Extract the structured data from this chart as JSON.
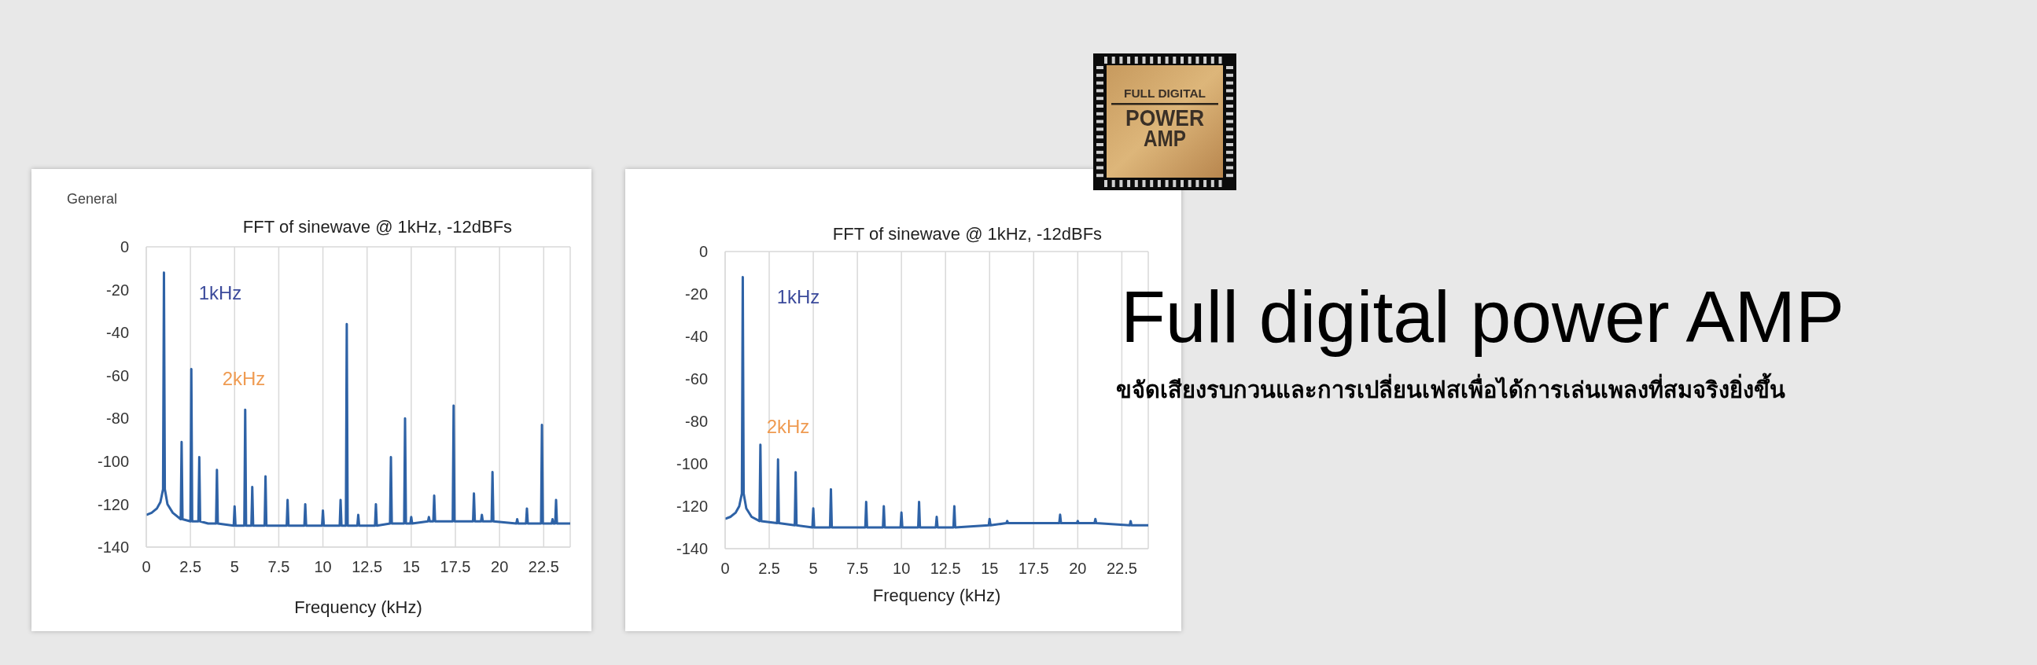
{
  "chart_data": [
    {
      "type": "line",
      "title": "FFT of sinewave @ 1kHz, -12dBFs",
      "xlabel": "Frequency (kHz)",
      "x": [
        0,
        0.3,
        0.6,
        0.8,
        0.95,
        1,
        1.05,
        1.2,
        1.5,
        1.95,
        2,
        2.05,
        2.5,
        2.55,
        2.6,
        2.95,
        3,
        3.05,
        3.5,
        3.95,
        4,
        4.05,
        4.95,
        5,
        5.05,
        5.55,
        5.6,
        5.65,
        5.95,
        6,
        6.05,
        6.7,
        6.75,
        6.8,
        7.95,
        8,
        8.05,
        8.95,
        9,
        9.05,
        9.95,
        10,
        10.05,
        10.95,
        11,
        11.05,
        11.3,
        11.35,
        11.4,
        11.95,
        12,
        12.05,
        12.95,
        13,
        13.05,
        13.8,
        13.85,
        13.9,
        14.6,
        14.65,
        14.7,
        14.95,
        15,
        15.05,
        15.95,
        16,
        16.05,
        16.25,
        16.3,
        16.35,
        17.35,
        17.4,
        17.45,
        18.5,
        18.55,
        18.6,
        18.95,
        19,
        19.05,
        19.55,
        19.6,
        19.65,
        20.95,
        21,
        21.05,
        21.5,
        21.55,
        21.6,
        22.35,
        22.4,
        22.45,
        22.95,
        23,
        23.05,
        23.15,
        23.2,
        23.25,
        24
      ],
      "series": [
        {
          "color": "#2e62a6",
          "values": [
            -125,
            -124,
            -122,
            -119,
            -113,
            -12,
            -113,
            -120,
            -124,
            -127,
            -91,
            -127,
            -128,
            -57,
            -128,
            -128,
            -98,
            -128,
            -129,
            -129,
            -104,
            -129,
            -130,
            -121,
            -130,
            -130,
            -76,
            -130,
            -130,
            -112,
            -130,
            -130,
            -107,
            -130,
            -130,
            -118,
            -130,
            -130,
            -120,
            -130,
            -130,
            -123,
            -130,
            -130,
            -118,
            -130,
            -130,
            -36,
            -130,
            -130,
            -125,
            -130,
            -130,
            -120,
            -130,
            -129,
            -98,
            -129,
            -129,
            -80,
            -129,
            -129,
            -126,
            -129,
            -128,
            -126,
            -128,
            -128,
            -116,
            -128,
            -128,
            -74,
            -128,
            -128,
            -115,
            -128,
            -128,
            -125,
            -128,
            -128,
            -105,
            -128,
            -129,
            -127,
            -129,
            -129,
            -122,
            -129,
            -129,
            -83,
            -129,
            -129,
            -127,
            -129,
            -129,
            -118,
            -129,
            -129
          ]
        }
      ],
      "xlim": [
        0,
        24
      ],
      "xticks": [
        0,
        2.5,
        5,
        7.5,
        10,
        12.5,
        15,
        17.5,
        20,
        22.5
      ],
      "ylim": [
        -140,
        0
      ],
      "yticks": [
        0,
        -20,
        -40,
        -60,
        -80,
        -100,
        -120,
        -140
      ],
      "grid": true,
      "annotations": [
        "General",
        "1kHz",
        "2kHz"
      ]
    },
    {
      "type": "line",
      "title": "FFT of sinewave @ 1kHz, -12dBFs",
      "xlabel": "Frequency (kHz)",
      "x": [
        0,
        0.3,
        0.6,
        0.8,
        0.95,
        1,
        1.05,
        1.2,
        1.5,
        1.95,
        2,
        2.05,
        2.95,
        3,
        3.05,
        3.95,
        4,
        4.05,
        4.95,
        5,
        5.05,
        5.95,
        6,
        6.05,
        7.95,
        8,
        8.05,
        8.95,
        9,
        9.05,
        9.95,
        10,
        10.05,
        10.95,
        11,
        11.05,
        11.95,
        12,
        12.05,
        12.95,
        13,
        13.05,
        14.95,
        15,
        15.05,
        15.95,
        16,
        16.05,
        18.95,
        19,
        19.05,
        19.95,
        20,
        20.05,
        20.95,
        21,
        21.05,
        22.95,
        23,
        23.05,
        24
      ],
      "series": [
        {
          "color": "#2e62a6",
          "values": [
            -126,
            -125,
            -123,
            -120,
            -114,
            -12,
            -114,
            -121,
            -125,
            -127,
            -91,
            -127,
            -128,
            -98,
            -128,
            -129,
            -104,
            -129,
            -130,
            -121,
            -130,
            -130,
            -112,
            -130,
            -130,
            -118,
            -130,
            -130,
            -120,
            -130,
            -130,
            -123,
            -130,
            -130,
            -118,
            -130,
            -130,
            -125,
            -130,
            -130,
            -120,
            -130,
            -129,
            -126,
            -129,
            -128,
            -127,
            -128,
            -128,
            -124,
            -128,
            -128,
            -127,
            -128,
            -128,
            -126,
            -128,
            -129,
            -127,
            -129,
            -129
          ]
        }
      ],
      "xlim": [
        0,
        24
      ],
      "xticks": [
        0,
        2.5,
        5,
        7.5,
        10,
        12.5,
        15,
        17.5,
        20,
        22.5
      ],
      "ylim": [
        -140,
        0
      ],
      "yticks": [
        0,
        -20,
        -40,
        -60,
        -80,
        -100,
        -120,
        -140
      ],
      "grid": true,
      "annotations": [
        "1kHz",
        "2kHz"
      ]
    },
    {
      "type": "other",
      "title": "Full digital power AMP",
      "subtitle": "ขจัดเสียงรบกวนและการเปลี่ยนเฟสเพื่อได้การเล่นเพลงที่สมจริงยิ่งขึ้น",
      "annotations": [
        "FULL DIGITAL",
        "POWER",
        "AMP"
      ]
    }
  ]
}
